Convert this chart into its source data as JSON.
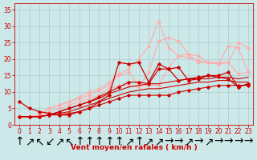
{
  "background_color": "#cce8e8",
  "grid_color": "#aacccc",
  "xlabel": "Vent moyen/en rafales ( km/h )",
  "xlabel_color": "#cc0000",
  "xlabel_fontsize": 6.5,
  "tick_color": "#cc0000",
  "tick_fontsize": 5.5,
  "ylim": [
    0,
    37
  ],
  "xlim": [
    -0.5,
    23.5
  ],
  "yticks": [
    0,
    5,
    10,
    15,
    20,
    25,
    30,
    35
  ],
  "xticks": [
    0,
    1,
    2,
    3,
    4,
    5,
    6,
    7,
    8,
    9,
    10,
    11,
    12,
    13,
    14,
    15,
    16,
    17,
    18,
    19,
    20,
    21,
    22,
    23
  ],
  "lines": [
    {
      "x": [
        0,
        1,
        2,
        3,
        4,
        5,
        6,
        7,
        8,
        9,
        10,
        11,
        12,
        13,
        14,
        15,
        16,
        17,
        18,
        19,
        20,
        21,
        22,
        23
      ],
      "y": [
        2.5,
        2.5,
        2.5,
        3,
        3,
        3.5,
        4,
        5,
        6,
        7,
        8,
        9,
        9,
        9,
        9,
        9,
        10,
        10.5,
        11,
        11.5,
        12,
        12,
        12,
        12
      ],
      "color": "#cc0000",
      "lw": 0.8,
      "marker": "D",
      "markersize": 1.8,
      "zorder": 5
    },
    {
      "x": [
        0,
        1,
        2,
        3,
        4,
        5,
        6,
        7,
        8,
        9,
        10,
        11,
        12,
        13,
        14,
        15,
        16,
        17,
        18,
        19,
        20,
        21,
        22,
        23
      ],
      "y": [
        2.5,
        2.5,
        2.5,
        3,
        3.5,
        4,
        5,
        6,
        7,
        8,
        9,
        10,
        10.5,
        11,
        11,
        11.5,
        12,
        12.5,
        13,
        13,
        13.5,
        13.5,
        13,
        13
      ],
      "color": "#cc0000",
      "lw": 0.8,
      "marker": null,
      "markersize": 0,
      "zorder": 4
    },
    {
      "x": [
        0,
        1,
        2,
        3,
        4,
        5,
        6,
        7,
        8,
        9,
        10,
        11,
        12,
        13,
        14,
        15,
        16,
        17,
        18,
        19,
        20,
        21,
        22,
        23
      ],
      "y": [
        2.5,
        2.5,
        2.5,
        3,
        4,
        5,
        6,
        7,
        8,
        9.5,
        10.5,
        11.5,
        12,
        12.5,
        12.5,
        13,
        13.5,
        14,
        14,
        14,
        14.5,
        14.5,
        14,
        14.5
      ],
      "color": "#cc0000",
      "lw": 0.8,
      "marker": null,
      "markersize": 0,
      "zorder": 4
    },
    {
      "x": [
        0,
        1,
        2,
        3,
        4,
        5,
        6,
        7,
        8,
        9,
        10,
        11,
        12,
        13,
        14,
        15,
        16,
        17,
        18,
        19,
        20,
        21,
        22,
        23
      ],
      "y": [
        2.5,
        2.5,
        2.5,
        3,
        4,
        5,
        6,
        7,
        8.5,
        10,
        11.5,
        13,
        13,
        12.5,
        17,
        17,
        13.5,
        14,
        14.5,
        15,
        14.5,
        14,
        11.5,
        12.5
      ],
      "color": "#cc0000",
      "lw": 0.9,
      "marker": "D",
      "markersize": 1.8,
      "zorder": 5
    },
    {
      "x": [
        0,
        1,
        2,
        3,
        4,
        5,
        6,
        7,
        8,
        9,
        10,
        11,
        12,
        13,
        14,
        15,
        16,
        17,
        18,
        19,
        20,
        21,
        22,
        23
      ],
      "y": [
        7,
        5,
        4,
        3.5,
        3,
        3,
        4,
        5,
        7,
        9,
        19,
        18.5,
        19,
        13,
        18.5,
        17,
        17.5,
        13.5,
        14,
        15,
        15,
        16,
        11.5,
        12.5
      ],
      "color": "#cc0000",
      "lw": 0.9,
      "marker": "D",
      "markersize": 1.8,
      "zorder": 5
    },
    {
      "x": [
        0,
        1,
        2,
        3,
        4,
        5,
        6,
        7,
        8,
        9,
        10,
        11,
        12,
        13,
        14,
        15,
        16,
        17,
        18,
        19,
        20,
        21,
        22,
        23
      ],
      "y": [
        2.5,
        2.5,
        3,
        4,
        5,
        6,
        7,
        8,
        9,
        11,
        12,
        12,
        11.5,
        16,
        25.5,
        26.5,
        25.5,
        21.5,
        19,
        19,
        18.5,
        19,
        15.5,
        16
      ],
      "color": "#ffaaaa",
      "lw": 0.8,
      "marker": "D",
      "markersize": 1.6,
      "zorder": 3
    },
    {
      "x": [
        0,
        1,
        2,
        3,
        4,
        5,
        6,
        7,
        8,
        9,
        10,
        11,
        12,
        13,
        14,
        15,
        16,
        17,
        18,
        19,
        20,
        21,
        22,
        23
      ],
      "y": [
        2.5,
        2.5,
        3,
        5,
        6,
        7,
        8,
        9,
        10.5,
        12,
        15,
        16,
        12,
        12,
        12,
        17.5,
        21,
        20.5,
        19.5,
        19,
        18.5,
        24,
        23.5,
        16
      ],
      "color": "#ffaaaa",
      "lw": 0.8,
      "marker": "D",
      "markersize": 1.6,
      "zorder": 3
    },
    {
      "x": [
        0,
        1,
        2,
        3,
        4,
        5,
        6,
        7,
        8,
        9,
        10,
        11,
        12,
        13,
        14,
        15,
        16,
        17,
        18,
        19,
        20,
        21,
        22,
        23
      ],
      "y": [
        2.5,
        2.5,
        3,
        5,
        6,
        7,
        8.5,
        10,
        11,
        13,
        15.5,
        17,
        20,
        24,
        31.5,
        23.5,
        21,
        21.5,
        21,
        19,
        19,
        19,
        25,
        23.5
      ],
      "color": "#ffaaaa",
      "lw": 0.8,
      "marker": "D",
      "markersize": 1.6,
      "zorder": 3
    }
  ],
  "arrows": [
    "↑",
    "↗",
    "↖",
    "↙",
    "↗",
    "↖",
    "↑",
    "↑",
    "↑",
    "↑",
    "↑",
    "↗",
    "↑",
    "↗",
    "↗",
    "→",
    "→",
    "↗",
    "→",
    "↗",
    "→",
    "→",
    "→",
    "→"
  ]
}
